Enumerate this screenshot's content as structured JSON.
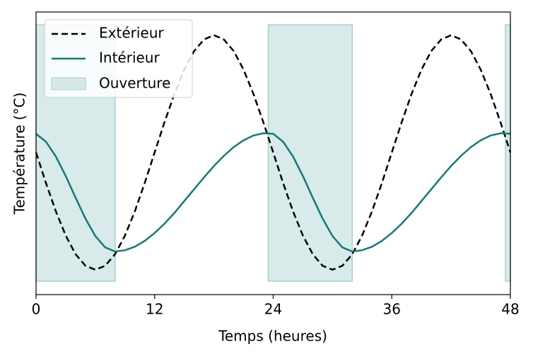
{
  "chart_data": {
    "type": "line",
    "xlabel": "Temps (heures)",
    "ylabel": "Température (°C)",
    "xlim": [
      0,
      48
    ],
    "xticks": [
      0,
      12,
      24,
      36,
      48
    ],
    "ylim": [
      0,
      10
    ],
    "yticks": [],
    "legend": "upper left",
    "x": [
      0,
      1,
      2,
      3,
      4,
      5,
      6,
      7,
      8,
      9,
      10,
      11,
      12,
      13,
      14,
      15,
      16,
      17,
      18,
      19,
      20,
      21,
      22,
      23,
      24,
      25,
      26,
      27,
      28,
      29,
      30,
      31,
      32,
      33,
      34,
      35,
      36,
      37,
      38,
      39,
      40,
      41,
      42,
      43,
      44,
      45,
      46,
      47,
      48
    ],
    "series": [
      {
        "name": "Extérieur",
        "color": "#000000",
        "dash": true,
        "values": [
          5.03,
          3.95,
          2.95,
          2.09,
          1.43,
          1.02,
          0.88,
          1.02,
          1.43,
          2.09,
          2.95,
          3.95,
          5.03,
          6.1,
          7.1,
          7.96,
          8.62,
          9.03,
          9.18,
          9.03,
          8.62,
          7.96,
          7.1,
          6.1,
          5.03,
          3.95,
          2.95,
          2.09,
          1.43,
          1.02,
          0.88,
          1.02,
          1.43,
          2.09,
          2.95,
          3.95,
          5.03,
          6.1,
          7.1,
          7.96,
          8.62,
          9.03,
          9.18,
          9.03,
          8.62,
          7.96,
          7.1,
          6.1,
          5.03
        ]
      },
      {
        "name": "Intérieur",
        "color": "#127b7b",
        "dash": false,
        "values": [
          5.69,
          5.41,
          4.89,
          4.2,
          3.43,
          2.69,
          2.07,
          1.67,
          1.525,
          1.57,
          1.695,
          1.9,
          2.18,
          2.51,
          2.89,
          3.31,
          3.73,
          4.15,
          4.55,
          4.91,
          5.22,
          5.46,
          5.63,
          5.71,
          5.69,
          5.41,
          4.89,
          4.2,
          3.43,
          2.69,
          2.07,
          1.67,
          1.525,
          1.57,
          1.695,
          1.9,
          2.18,
          2.51,
          2.89,
          3.31,
          3.73,
          4.15,
          4.55,
          4.91,
          5.22,
          5.46,
          5.63,
          5.71,
          5.69
        ]
      }
    ],
    "shading": {
      "name": "Ouverture",
      "color": "#a8d0d0",
      "spans": [
        [
          0,
          8
        ],
        [
          23.5,
          32
        ],
        [
          47.5,
          48
        ]
      ]
    }
  }
}
